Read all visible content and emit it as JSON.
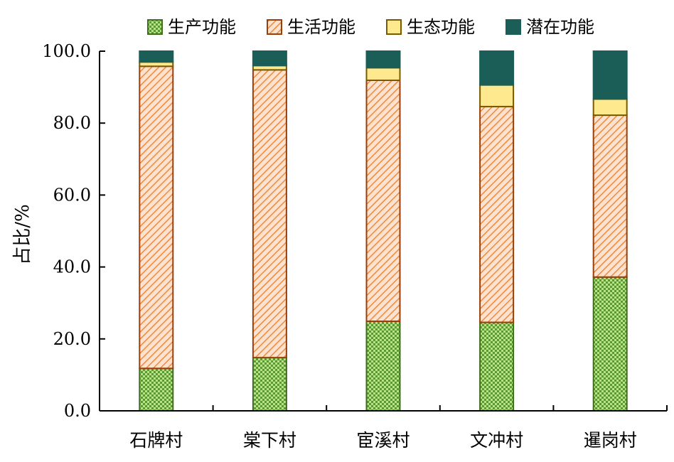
{
  "chart_data": {
    "type": "bar",
    "stacked": true,
    "title": "",
    "xlabel": "",
    "ylabel": "占比/%",
    "ylim": [
      0,
      100
    ],
    "yticks": [
      "0.0",
      "20.0",
      "40.0",
      "60.0",
      "80.0",
      "100.0"
    ],
    "legend_position": "top",
    "grid": false,
    "categories": [
      "石牌村",
      "棠下村",
      "宦溪村",
      "文冲村",
      "暹岗村"
    ],
    "series": [
      {
        "name": "生产功能",
        "values": [
          11.8,
          14.8,
          24.9,
          24.6,
          37.2
        ],
        "fill": "#b9e08a",
        "stroke": "#3f6e1e",
        "pattern": "checker"
      },
      {
        "name": "生活功能",
        "values": [
          84.0,
          80.0,
          67.0,
          60.0,
          45.0
        ],
        "fill": "#fde2cf",
        "stroke": "#9b3f0a",
        "pattern": "diagonal"
      },
      {
        "name": "生态功能",
        "values": [
          1.2,
          1.2,
          3.5,
          6.0,
          4.5
        ],
        "fill": "#ffe98f",
        "stroke": "#7a5a00",
        "pattern": "solid"
      },
      {
        "name": "潜在功能",
        "values": [
          3.0,
          4.0,
          4.6,
          9.4,
          13.3
        ],
        "fill": "#1b5e58",
        "stroke": "#1b5e58",
        "pattern": "solid"
      }
    ]
  }
}
